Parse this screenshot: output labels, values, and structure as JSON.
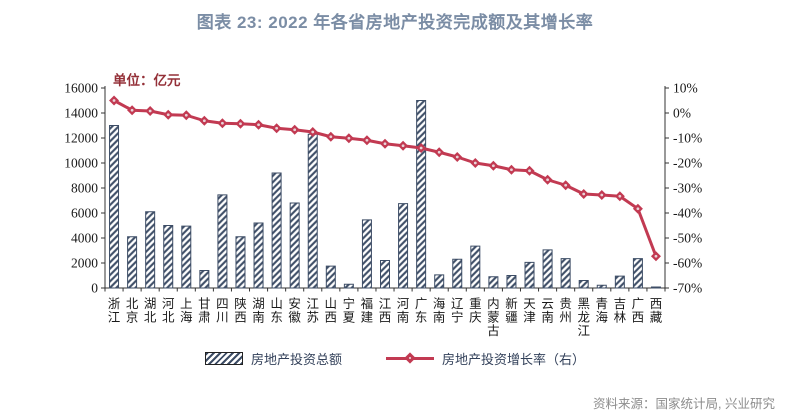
{
  "title": "图表 23: 2022 年各省房地产投资完成额及其增长率",
  "unit_label": "单位：亿元",
  "source": "资料来源：国家统计局, 兴业研究",
  "legend": {
    "bar_label": "房地产投资总额",
    "line_label": "房地产投资增长率（右）"
  },
  "colors": {
    "title": "#7B8DA5",
    "bar": "#3D4D66",
    "line": "#C23A52",
    "marker_center": "#E8D4D9",
    "unit": "#943038",
    "source": "#8C8C8C",
    "axis": "#333333",
    "text": "#1A1A1A",
    "legend_text": "#33415A"
  },
  "chart_data": {
    "type": "bar",
    "title": "图表 23: 2022 年各省房地产投资完成额及其增长率",
    "grid": false,
    "legend_position": "bottom",
    "categories": [
      "浙江",
      "北京",
      "湖北",
      "河北",
      "上海",
      "甘肃",
      "四川",
      "陕西",
      "湖南",
      "山东",
      "安徽",
      "江苏",
      "山西",
      "宁夏",
      "福建",
      "江西",
      "河南",
      "广东",
      "海南",
      "辽宁",
      "重庆",
      "内蒙古",
      "新疆",
      "天津",
      "云南",
      "贵州",
      "黑龙江",
      "青海",
      "吉林",
      "广西",
      "西藏"
    ],
    "series": [
      {
        "name": "房地产投资总额",
        "type": "bar",
        "axis": "left",
        "unit": "亿元",
        "values": [
          13000,
          4100,
          6100,
          5000,
          4950,
          1400,
          7450,
          4100,
          5200,
          9200,
          6800,
          12300,
          1750,
          300,
          5450,
          2200,
          6750,
          15000,
          1050,
          2300,
          3350,
          900,
          1000,
          2050,
          3050,
          2350,
          600,
          220,
          950,
          2350,
          80
        ]
      },
      {
        "name": "房地产投资增长率（右）",
        "type": "line",
        "axis": "right",
        "unit": "%",
        "values": [
          5.0,
          1.1,
          0.8,
          -0.7,
          -0.9,
          -3.1,
          -4.1,
          -4.3,
          -4.7,
          -6.1,
          -6.7,
          -7.6,
          -9.5,
          -10.1,
          -10.9,
          -12.3,
          -13.1,
          -14.0,
          -15.7,
          -17.6,
          -20.0,
          -21.1,
          -22.7,
          -23.1,
          -26.7,
          -28.9,
          -32.4,
          -32.8,
          -33.3,
          -38.3,
          -57.3
        ]
      }
    ],
    "left_axis": {
      "label": "单位：亿元",
      "min": 0,
      "max": 16000,
      "step": 2000,
      "ticks": [
        "0",
        "2000",
        "4000",
        "6000",
        "8000",
        "10000",
        "12000",
        "14000",
        "16000"
      ]
    },
    "right_axis": {
      "min": -70,
      "max": 10,
      "step": 10,
      "ticks": [
        "10%",
        "0%",
        "-10%",
        "-20%",
        "-30%",
        "-40%",
        "-50%",
        "-60%",
        "-70%"
      ]
    }
  }
}
